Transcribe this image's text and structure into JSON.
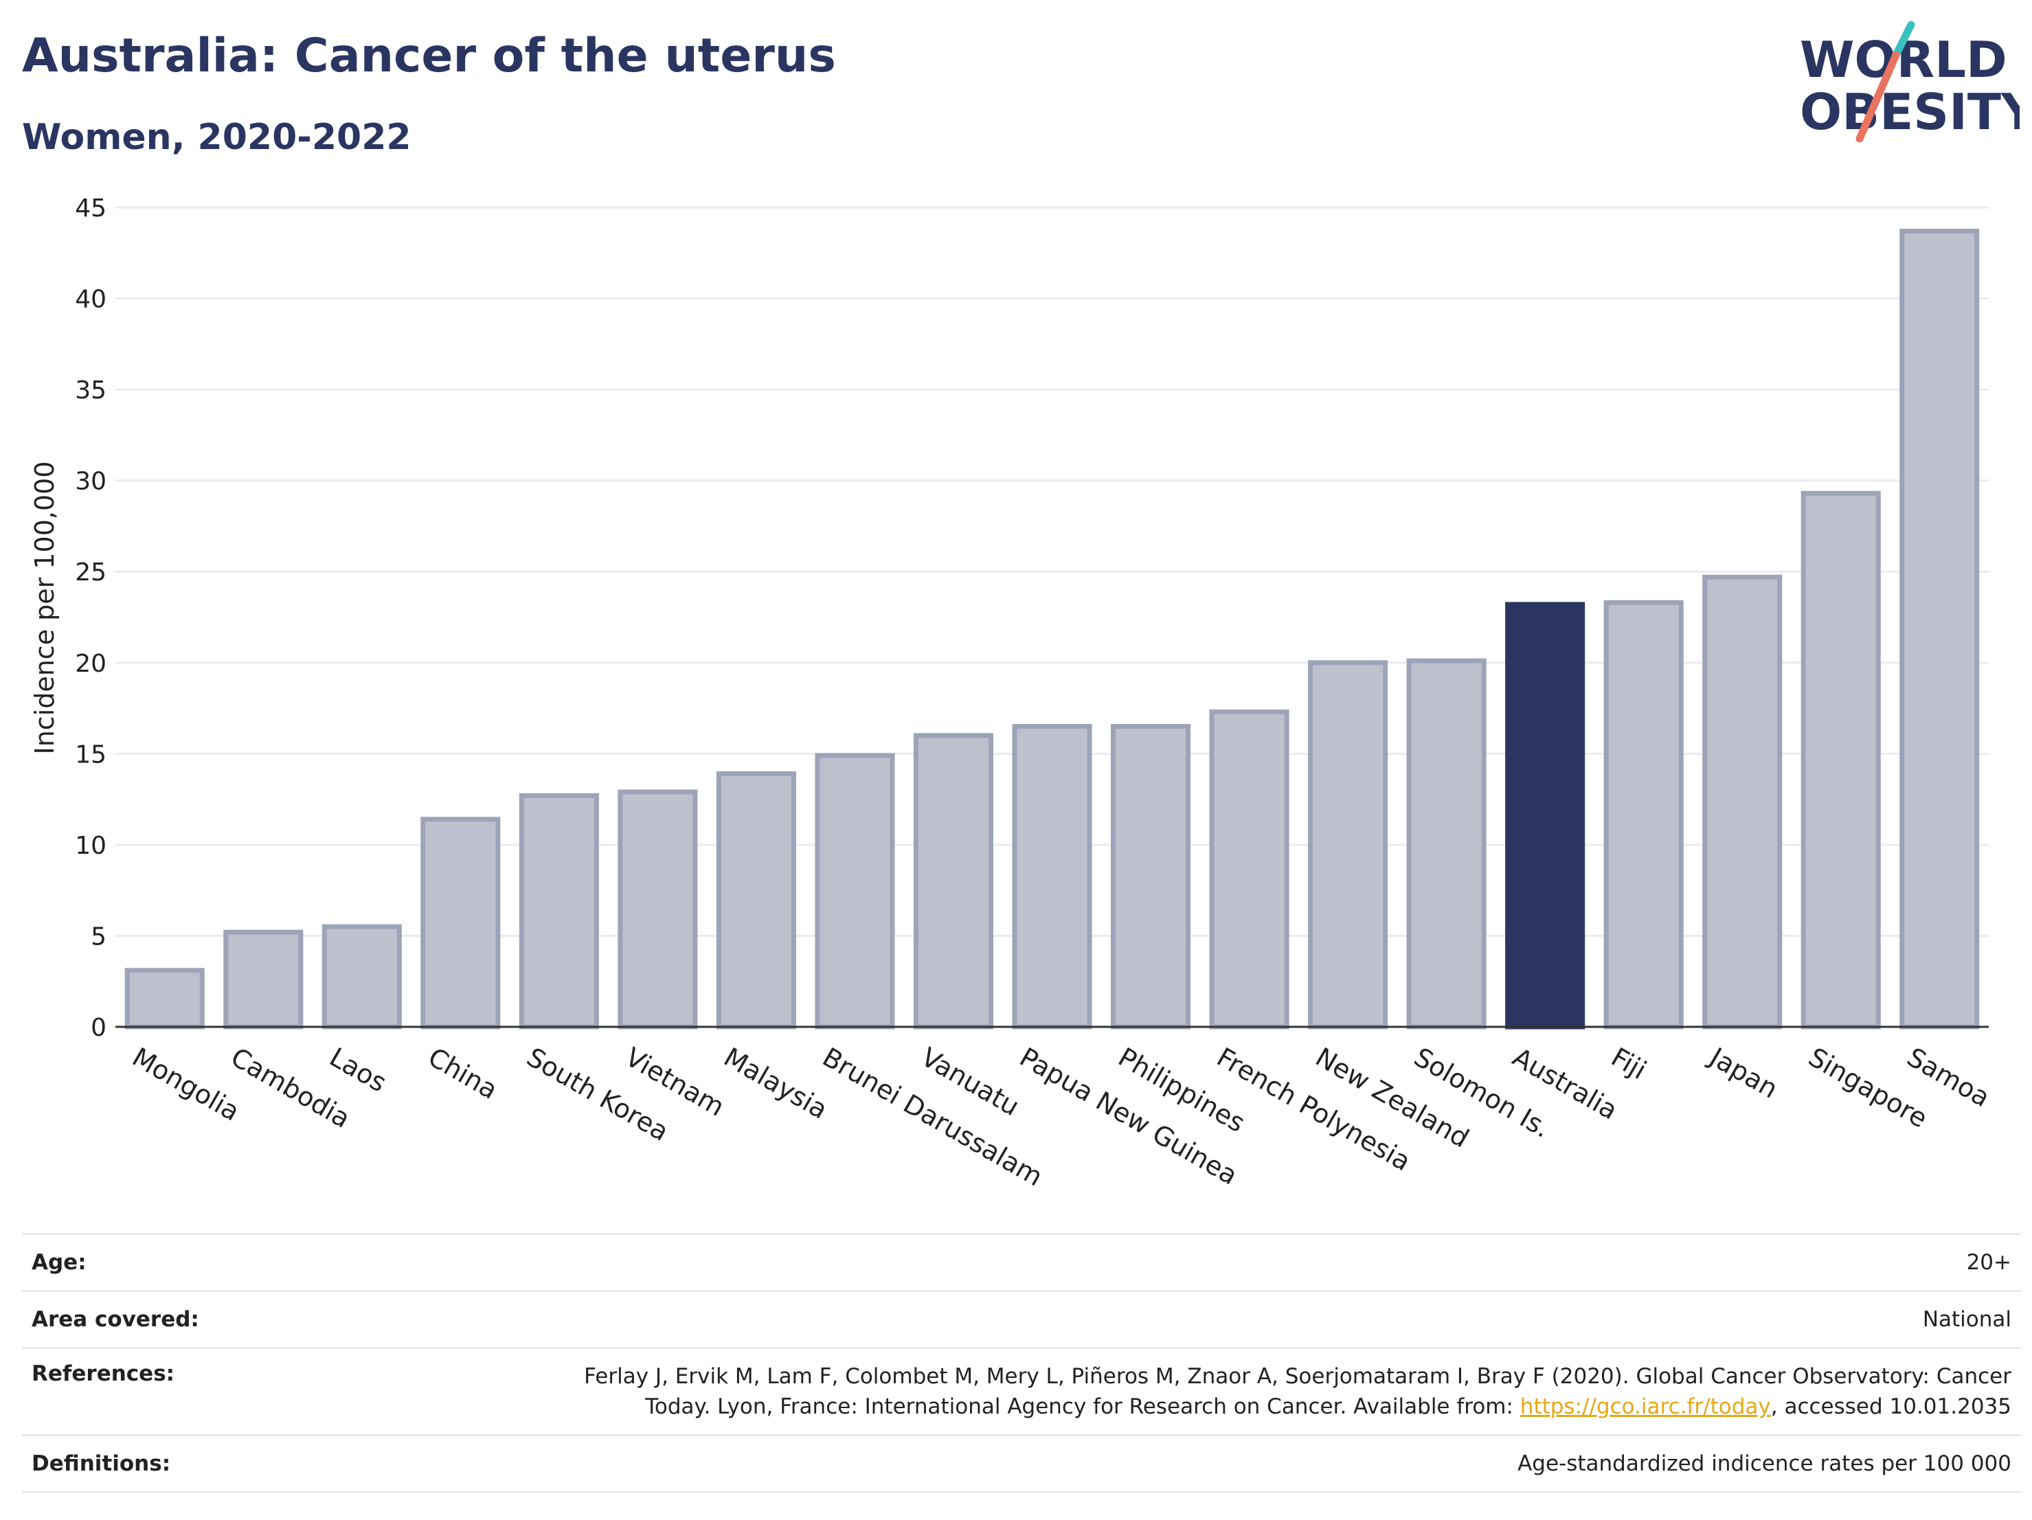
{
  "header": {
    "title": "Australia: Cancer of the uterus",
    "subtitle": "Women, 2020-2022"
  },
  "logo": {
    "line1": "WORLD",
    "line2": "OBESITY",
    "accent_colors": [
      "#3cbfbf",
      "#e8735e"
    ],
    "text_color": "#2b3561"
  },
  "chart_data": {
    "type": "bar",
    "title": "Australia: Cancer of the uterus",
    "subtitle": "Women, 2020-2022",
    "xlabel": "",
    "ylabel": "Incidence per 100,000",
    "ylim": [
      0,
      45
    ],
    "yticks": [
      0,
      5,
      10,
      15,
      20,
      25,
      30,
      35,
      40,
      45
    ],
    "grid": true,
    "categories": [
      "Mongolia",
      "Cambodia",
      "Laos",
      "China",
      "South Korea",
      "Vietnam",
      "Malaysia",
      "Brunei Darussalam",
      "Vanuatu",
      "Papua New Guinea",
      "Philippines",
      "French Polynesia",
      "New Zealand",
      "Solomon Is.",
      "Australia",
      "Fiji",
      "Japan",
      "Singapore",
      "Samoa"
    ],
    "values": [
      3.1,
      5.2,
      5.5,
      11.4,
      12.7,
      12.9,
      13.9,
      14.9,
      16.0,
      16.5,
      16.5,
      17.3,
      20.0,
      20.1,
      23.2,
      23.3,
      24.7,
      29.3,
      43.7
    ],
    "highlight": "Australia",
    "colors": {
      "bar": "#bdc0cd",
      "bar_border": "#9ea3b8",
      "highlight": "#2b3561"
    }
  },
  "meta": {
    "age_label": "Age:",
    "age_value": "20+",
    "area_label": "Area covered:",
    "area_value": "National",
    "references_label": "References:",
    "references_line1": "Ferlay J, Ervik M, Lam F, Colombet M, Mery L, Piñeros M, Znaor A, Soerjomataram I, Bray F (2020). Global Cancer Observatory: Cancer",
    "references_line2_pre": "Today. Lyon, France: International Agency for Research on Cancer. Available from: ",
    "references_link": "https://gco.iarc.fr/today",
    "references_line2_post": ", accessed 10.01.2035",
    "definitions_label": "Definitions:",
    "definitions_value": "Age-standardized indicence rates per 100 000"
  }
}
